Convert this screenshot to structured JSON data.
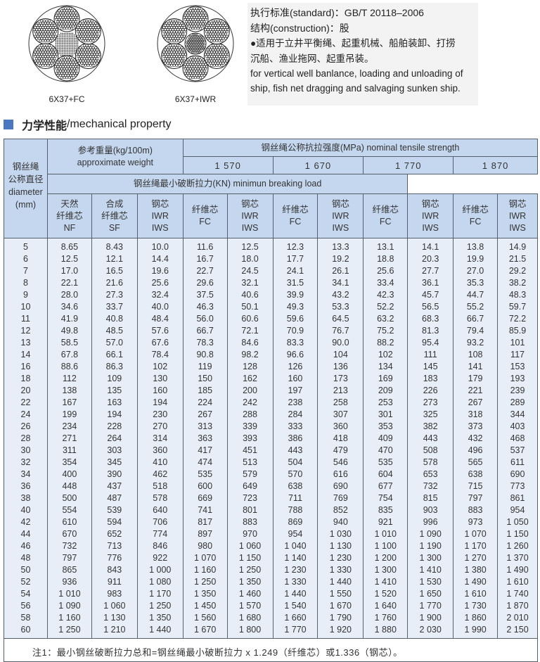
{
  "figures": [
    {
      "label": "6X37+FC",
      "core": "fiber"
    },
    {
      "label": "6X37+IWR",
      "core": "steel"
    }
  ],
  "info": {
    "standard": "执行标准(standard)：GB/T 20118–2006",
    "construction": "结构(construction)：股",
    "usage_cn_1": "●适用于立井平衡绳、起重机械、船舶装卸、打捞",
    "usage_cn_2": "沉船、渔业拖网、起重吊装。",
    "usage_en_1": "for vertical well banlance, loading and unloading of",
    "usage_en_2": "ship, fish net dragging and salvaging sunken ship."
  },
  "section": {
    "title_cn": "力学性能",
    "title_en": "/mechanical property",
    "marker_color": "#4a78c0"
  },
  "table": {
    "diameter_header": [
      "钢丝绳",
      "公称直径",
      "diameter",
      "(mm)"
    ],
    "weight_header": [
      "参考重量(kg/100m)",
      "approximate weight"
    ],
    "strength_header": "钢丝绳公称抗拉强度(MPa) nominal tensile strength",
    "grades": [
      "1 570",
      "1 670",
      "1 770",
      "1 870"
    ],
    "breaking_header": "钢丝绳最小破断拉力(KN) minimun breaking load",
    "weight_cols": [
      [
        "天然",
        "纤维芯",
        "NF"
      ],
      [
        "合成",
        "纤维芯",
        "SF"
      ],
      [
        "钢芯",
        "IWR",
        "IWS"
      ]
    ],
    "load_cols": [
      [
        "纤维芯",
        "FC"
      ],
      [
        "钢芯",
        "IWR",
        "IWS"
      ]
    ],
    "rows": [
      [
        "5",
        "8.65",
        "8.43",
        "10.0",
        "11.6",
        "12.5",
        "12.3",
        "13.3",
        "13.1",
        "14.1",
        "13.8",
        "14.9"
      ],
      [
        "6",
        "12.5",
        "12.1",
        "14.4",
        "16.7",
        "18.0",
        "17.7",
        "19.2",
        "18.8",
        "20.3",
        "19.9",
        "21.5"
      ],
      [
        "7",
        "17.0",
        "16.5",
        "19.6",
        "22.7",
        "24.5",
        "24.1",
        "26.1",
        "25.6",
        "27.7",
        "27.0",
        "29.2"
      ],
      [
        "8",
        "22.1",
        "21.6",
        "25.6",
        "29.6",
        "32.1",
        "31.5",
        "34.1",
        "33.4",
        "36.1",
        "35.3",
        "38.2"
      ],
      [
        "9",
        "28.0",
        "27.3",
        "32.4",
        "37.5",
        "40.6",
        "39.9",
        "43.2",
        "42.3",
        "45.7",
        "44.7",
        "48.3"
      ],
      [
        "10",
        "34.6",
        "33.7",
        "40.0",
        "46.3",
        "50.1",
        "49.3",
        "53.3",
        "52.2",
        "56.5",
        "55.2",
        "59.7"
      ],
      [
        "11",
        "41.9",
        "40.8",
        "48.4",
        "56.0",
        "60.6",
        "59.6",
        "64.5",
        "63.2",
        "68.3",
        "66.7",
        "72.2"
      ],
      [
        "12",
        "49.8",
        "48.5",
        "57.6",
        "66.7",
        "72.1",
        "70.9",
        "76.7",
        "75.2",
        "81.3",
        "79.4",
        "85.9"
      ],
      [
        "13",
        "58.5",
        "57.0",
        "67.6",
        "78.3",
        "84.6",
        "83.3",
        "90.0",
        "88.2",
        "95.4",
        "93.2",
        "101"
      ],
      [
        "14",
        "67.8",
        "66.1",
        "78.4",
        "90.8",
        "98.2",
        "96.6",
        "104",
        "102",
        "111",
        "108",
        "117"
      ],
      [
        "16",
        "88.6",
        "86.3",
        "102",
        "119",
        "128",
        "126",
        "136",
        "134",
        "145",
        "141",
        "153"
      ],
      [
        "18",
        "112",
        "109",
        "130",
        "150",
        "162",
        "160",
        "173",
        "169",
        "183",
        "179",
        "193"
      ],
      [
        "20",
        "138",
        "135",
        "160",
        "185",
        "200",
        "197",
        "213",
        "209",
        "226",
        "221",
        "239"
      ],
      [
        "22",
        "167",
        "163",
        "194",
        "224",
        "242",
        "238",
        "258",
        "253",
        "273",
        "267",
        "289"
      ],
      [
        "24",
        "199",
        "194",
        "230",
        "267",
        "288",
        "284",
        "307",
        "301",
        "325",
        "318",
        "344"
      ],
      [
        "26",
        "234",
        "228",
        "270",
        "313",
        "339",
        "333",
        "360",
        "353",
        "382",
        "373",
        "403"
      ],
      [
        "28",
        "271",
        "264",
        "314",
        "363",
        "393",
        "386",
        "418",
        "409",
        "443",
        "432",
        "468"
      ],
      [
        "30",
        "311",
        "303",
        "360",
        "417",
        "451",
        "443",
        "479",
        "470",
        "508",
        "496",
        "537"
      ],
      [
        "32",
        "354",
        "345",
        "410",
        "474",
        "513",
        "504",
        "546",
        "535",
        "578",
        "565",
        "611"
      ],
      [
        "34",
        "400",
        "390",
        "462",
        "535",
        "579",
        "570",
        "616",
        "604",
        "653",
        "638",
        "690"
      ],
      [
        "36",
        "448",
        "437",
        "518",
        "600",
        "649",
        "638",
        "690",
        "677",
        "732",
        "715",
        "773"
      ],
      [
        "38",
        "500",
        "487",
        "578",
        "669",
        "723",
        "711",
        "769",
        "754",
        "815",
        "797",
        "861"
      ],
      [
        "40",
        "554",
        "539",
        "640",
        "741",
        "801",
        "788",
        "852",
        "835",
        "903",
        "883",
        "954"
      ],
      [
        "42",
        "610",
        "594",
        "706",
        "817",
        "883",
        "869",
        "940",
        "921",
        "996",
        "973",
        "1 050"
      ],
      [
        "44",
        "670",
        "652",
        "774",
        "897",
        "970",
        "954",
        "1 030",
        "1 010",
        "1 090",
        "1 070",
        "1 150"
      ],
      [
        "46",
        "732",
        "713",
        "846",
        "980",
        "1 060",
        "1 040",
        "1 130",
        "1 100",
        "1 190",
        "1 170",
        "1 260"
      ],
      [
        "48",
        "797",
        "776",
        "922",
        "1 070",
        "1 150",
        "1 140",
        "1 230",
        "1 200",
        "1 300",
        "1 270",
        "1 370"
      ],
      [
        "50",
        "865",
        "843",
        "1 000",
        "1 160",
        "1 250",
        "1 230",
        "1 330",
        "1 300",
        "1 410",
        "1 380",
        "1 490"
      ],
      [
        "52",
        "936",
        "911",
        "1 080",
        "1 250",
        "1 350",
        "1 330",
        "1 440",
        "1 410",
        "1 530",
        "1 490",
        "1 610"
      ],
      [
        "54",
        "1 010",
        "983",
        "1 170",
        "1 350",
        "1 460",
        "1 440",
        "1 550",
        "1 520",
        "1 650",
        "1 610",
        "1 740"
      ],
      [
        "56",
        "1 090",
        "1 060",
        "1 250",
        "1 450",
        "1 570",
        "1 540",
        "1 670",
        "1 640",
        "1 770",
        "1 730",
        "1 870"
      ],
      [
        "58",
        "1 160",
        "1 130",
        "1 350",
        "1 560",
        "1 680",
        "1 660",
        "1 790",
        "1 760",
        "1 900",
        "1 860",
        "2 010"
      ],
      [
        "60",
        "1 250",
        "1 210",
        "1 440",
        "1 670",
        "1 800",
        "1 770",
        "1 920",
        "1 880",
        "2 030",
        "1 990",
        "2 150"
      ]
    ],
    "note": "注1：最小钢丝破断拉力总和=钢丝绳最小破断拉力 x 1.249（纤维芯）或1.336（钢芯）。"
  }
}
